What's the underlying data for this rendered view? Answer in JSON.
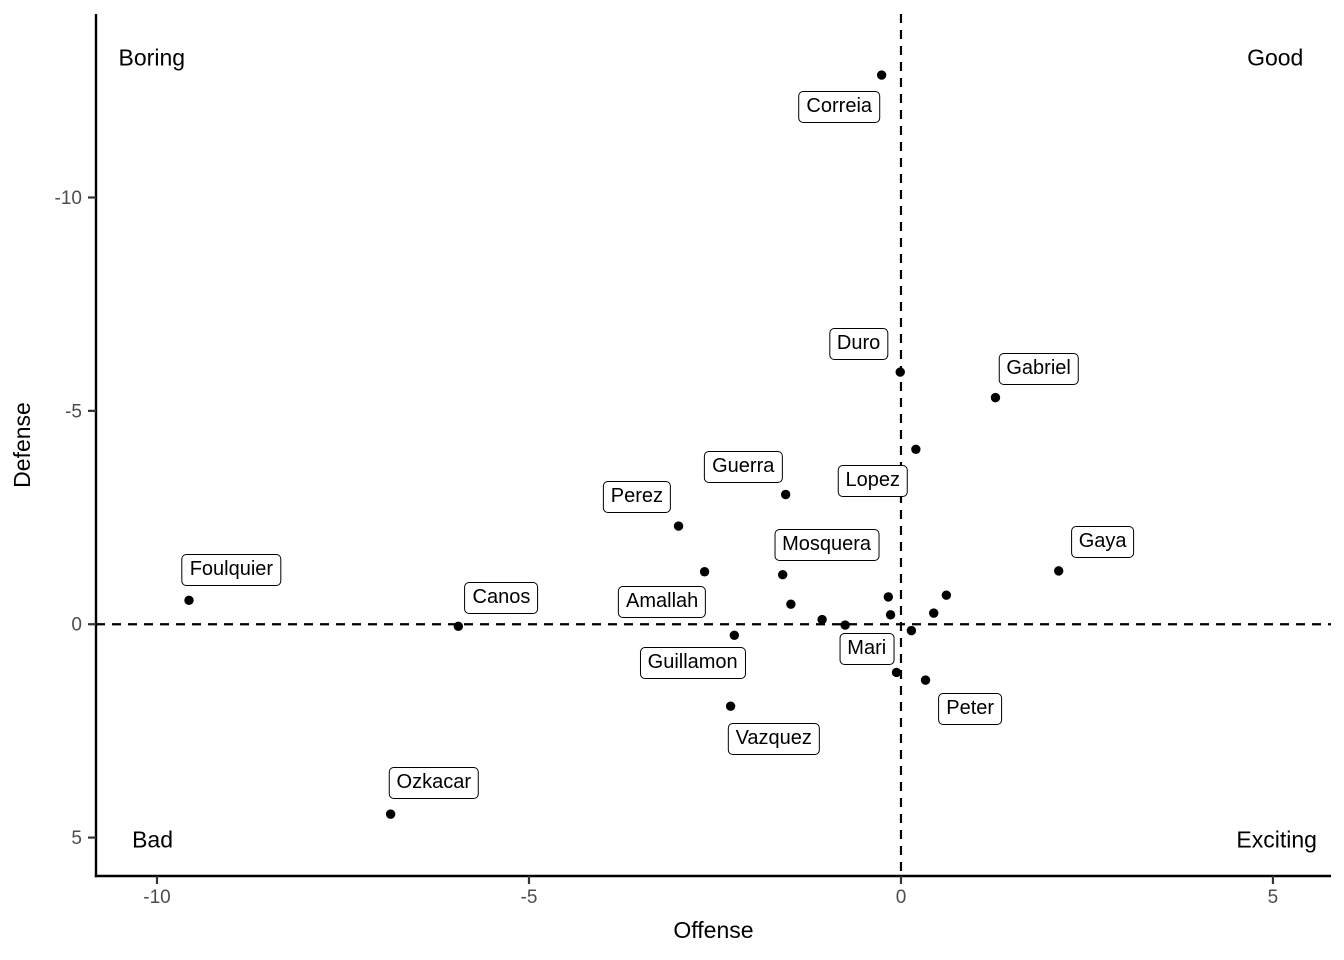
{
  "chart_data": {
    "type": "scatter",
    "title": "",
    "xlabel": "Offense",
    "ylabel": "Defense",
    "xlim": [
      -10.82,
      5.78
    ],
    "ylim": [
      -14.3,
      5.9
    ],
    "y_axis_reversed": true,
    "x_ticks": [
      -10,
      -5,
      0,
      5
    ],
    "y_ticks": [
      -10,
      -5,
      0,
      5
    ],
    "grid": false,
    "legend": "none",
    "reference_lines": [
      {
        "axis": "x",
        "value": 0,
        "style": "dashed"
      },
      {
        "axis": "y",
        "value": 0,
        "style": "dashed"
      }
    ],
    "quadrant_annotations": [
      {
        "label": "Boring",
        "x": -10.07,
        "y": -13.28
      },
      {
        "label": "Good",
        "x": 5.03,
        "y": -13.28
      },
      {
        "label": "Bad",
        "x": -10.06,
        "y": 5.04
      },
      {
        "label": "Exciting",
        "x": 5.05,
        "y": 5.04
      }
    ],
    "labeled_points": [
      {
        "name": "Correia",
        "x": -0.26,
        "y": -12.87,
        "label_x": -0.83,
        "label_y": -12.13
      },
      {
        "name": "Duro",
        "x": -0.01,
        "y": -5.91,
        "label_x": -0.57,
        "label_y": -6.56
      },
      {
        "name": "Gabriel",
        "x": 1.27,
        "y": -5.31,
        "label_x": 1.85,
        "label_y": -5.98
      },
      {
        "name": "Lopez",
        "x": 0.2,
        "y": -4.1,
        "label_x": -0.38,
        "label_y": -3.35
      },
      {
        "name": "Guerra",
        "x": -1.55,
        "y": -3.04,
        "label_x": -2.12,
        "label_y": -3.68
      },
      {
        "name": "Perez",
        "x": -2.99,
        "y": -2.3,
        "label_x": -3.55,
        "label_y": -2.98
      },
      {
        "name": "Gaya",
        "x": 2.12,
        "y": -1.25,
        "label_x": 2.71,
        "label_y": -1.93
      },
      {
        "name": "Mosquera",
        "x": -1.59,
        "y": -1.16,
        "label_x": -1.0,
        "label_y": -1.85
      },
      {
        "name": "Amallah",
        "x": -2.64,
        "y": -1.23,
        "label_x": -3.21,
        "label_y": -0.52
      },
      {
        "name": "Foulquier",
        "x": -9.57,
        "y": -0.56,
        "label_x": -9.0,
        "label_y": -1.27
      },
      {
        "name": "Canos",
        "x": -5.95,
        "y": 0.05,
        "label_x": -5.37,
        "label_y": -0.62
      },
      {
        "name": "Guillamon",
        "x": -2.24,
        "y": 0.26,
        "label_x": -2.8,
        "label_y": 0.91
      },
      {
        "name": "Mari",
        "x": -0.06,
        "y": 1.13,
        "label_x": -0.46,
        "label_y": 0.59
      },
      {
        "name": "Peter",
        "x": 0.33,
        "y": 1.31,
        "label_x": 0.93,
        "label_y": 1.99
      },
      {
        "name": "Vazquez",
        "x": -2.29,
        "y": 1.92,
        "label_x": -1.71,
        "label_y": 2.68
      },
      {
        "name": "Ozkacar",
        "x": -6.86,
        "y": 4.45,
        "label_x": -6.28,
        "label_y": 3.73
      }
    ],
    "unlabeled_points": [
      {
        "x": -1.48,
        "y": -0.47
      },
      {
        "x": -1.06,
        "y": -0.11
      },
      {
        "x": -0.75,
        "y": 0.02
      },
      {
        "x": -0.17,
        "y": -0.64
      },
      {
        "x": -0.14,
        "y": -0.22
      },
      {
        "x": 0.14,
        "y": 0.15
      },
      {
        "x": 0.44,
        "y": -0.26
      },
      {
        "x": 0.61,
        "y": -0.68
      }
    ],
    "colors": {
      "point": "#000000",
      "axis_line": "#000000",
      "tick_mark": "#333333",
      "tick_label": "#4d4d4d",
      "reference_line": "#000000",
      "label_box_border": "#000000",
      "label_box_fill": "#ffffff",
      "background": "#ffffff"
    }
  }
}
